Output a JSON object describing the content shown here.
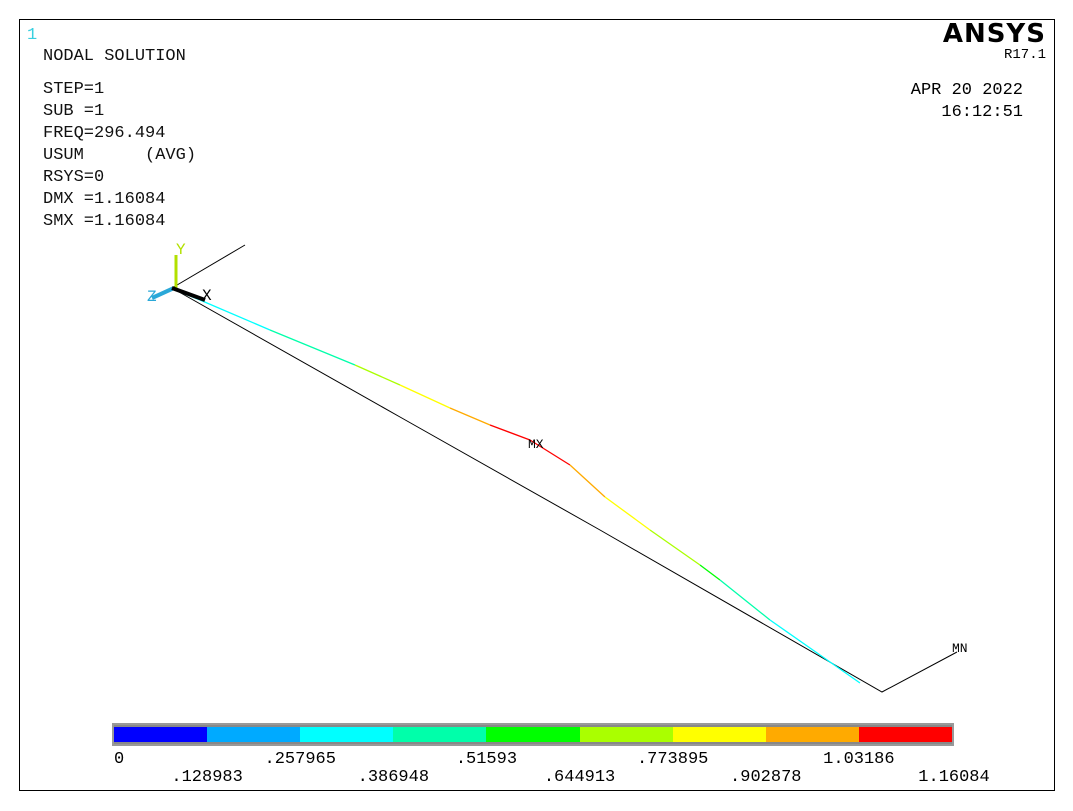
{
  "window_number": "1",
  "title": "NODAL SOLUTION",
  "info": [
    "STEP=1",
    "SUB =1",
    "FREQ=296.494",
    "USUM      (AVG)",
    "RSYS=0",
    "DMX =1.16084",
    "SMX =1.16084"
  ],
  "brand": {
    "logo": "ANSYS",
    "version": "R17.1"
  },
  "date": "APR 20 2022",
  "time": "16:12:51",
  "axes": {
    "x": "X",
    "y": "Y",
    "z": "Z"
  },
  "markers": {
    "max": "MX",
    "min": "MN"
  },
  "legend": {
    "colors": [
      "#0000ff",
      "#00aaff",
      "#00ffff",
      "#00ffaa",
      "#00ff00",
      "#aaff00",
      "#ffff00",
      "#ffaa00",
      "#ff0000"
    ],
    "labels_top": [
      "0",
      ".257965",
      ".51593",
      ".773895",
      "1.03186"
    ],
    "labels_bottom": [
      ".128983",
      ".386948",
      ".644913",
      ".902878",
      "1.16084"
    ]
  }
}
